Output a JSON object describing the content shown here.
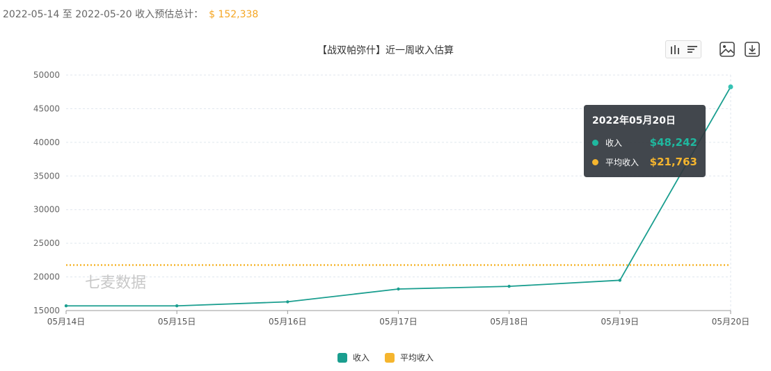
{
  "summary": {
    "label": "2022-05-14 至 2022-05-20 收入预估总计：",
    "amount": "$ 152,338"
  },
  "icons": {
    "view_switch": [
      "bar-chart-icon",
      "list-icon"
    ],
    "actions": [
      "image-save-icon",
      "download-icon"
    ]
  },
  "watermark": "七麦数据",
  "colors": {
    "income": "#1a9e8f",
    "average": "#f5b52e",
    "summary_amount": "#f5a623"
  },
  "tooltip": {
    "title": "2022年05月20日",
    "rows": [
      {
        "label": "收入",
        "value": "$48,242",
        "color": "#1fb89f"
      },
      {
        "label": "平均收入",
        "value": "$21,763",
        "color": "#f5b52e"
      }
    ]
  },
  "chart_data": {
    "type": "line",
    "title": "【战双帕弥什】近一周收入估算",
    "categories": [
      "05月14日",
      "05月15日",
      "05月16日",
      "05月17日",
      "05月18日",
      "05月19日",
      "05月20日"
    ],
    "series": [
      {
        "name": "收入",
        "values": [
          15700,
          15700,
          16300,
          18200,
          18600,
          19500,
          48242
        ]
      },
      {
        "name": "平均收入",
        "values": [
          21763,
          21763,
          21763,
          21763,
          21763,
          21763,
          21763
        ],
        "style": "dotted"
      }
    ],
    "y_ticks": [
      "15000",
      "20000",
      "25000",
      "30000",
      "35000",
      "40000",
      "45000",
      "50000"
    ],
    "ylim": [
      15000,
      50000
    ],
    "grid": true,
    "legend": "bottom-center"
  }
}
